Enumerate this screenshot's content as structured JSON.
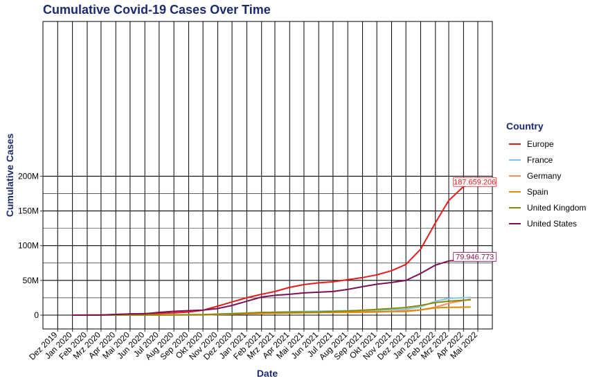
{
  "chart_data": {
    "type": "line",
    "title": "Cumulative Covid-19 Cases Over Time",
    "xlabel": "Date",
    "ylabel": "Cumulative Cases",
    "ylim": [
      0,
      210000000
    ],
    "yticks": [
      0,
      50000000,
      100000000,
      150000000,
      200000000
    ],
    "ytick_labels": [
      "0",
      "50M",
      "100M",
      "150M",
      "200M"
    ],
    "xlim": [
      "2019-11-20",
      "2022-05-20"
    ],
    "xtick_labels": [
      "Dez 2019",
      "Jan 2020",
      "Feb 2020",
      "Mrz 2020",
      "Apr 2020",
      "Mai 2020",
      "Jun 2020",
      "Jul 2020",
      "Aug 2020",
      "Sep 2020",
      "Okt 2020",
      "Nov 2020",
      "Dez 2020",
      "Jan 2021",
      "Feb 2021",
      "Mrz 2021",
      "Apr 2021",
      "Mai 2021",
      "Jun 2021",
      "Jul 2021",
      "Aug 2021",
      "Sep 2021",
      "Okt 2021",
      "Nov 2021",
      "Dez 2021",
      "Jan 2022",
      "Feb 2022",
      "Mrz 2022",
      "Apr 2022",
      "Mai 2022"
    ],
    "grid": true,
    "legend": {
      "title": "Country",
      "placement": "right"
    },
    "series": [
      {
        "name": "Europe",
        "color": "#e41a1c",
        "x": [
          "2020-01-01",
          "2020-03-01",
          "2020-04-01",
          "2020-05-01",
          "2020-06-01",
          "2020-07-01",
          "2020-08-01",
          "2020-09-01",
          "2020-10-01",
          "2020-11-01",
          "2020-12-01",
          "2021-01-01",
          "2021-02-01",
          "2021-03-01",
          "2021-04-01",
          "2021-05-01",
          "2021-06-01",
          "2021-07-01",
          "2021-08-01",
          "2021-09-01",
          "2021-10-01",
          "2021-11-01",
          "2021-12-01",
          "2022-01-01",
          "2022-02-01",
          "2022-03-01",
          "2022-04-01",
          "2022-04-16"
        ],
        "y": [
          0,
          200000,
          1000000,
          1800000,
          2200000,
          2600000,
          3200000,
          4500000,
          7000000,
          13000000,
          19000000,
          25000000,
          30000000,
          34000000,
          40000000,
          44000000,
          46500000,
          48000000,
          51000000,
          54000000,
          58000000,
          64000000,
          73000000,
          95000000,
          133000000,
          165000000,
          185000000,
          187659206
        ],
        "end_label": "187.659.206"
      },
      {
        "name": "France",
        "color": "#7ec8e3",
        "x": [
          "2020-01-01",
          "2020-04-01",
          "2020-07-01",
          "2020-10-01",
          "2020-12-01",
          "2021-02-01",
          "2021-04-01",
          "2021-06-01",
          "2021-08-01",
          "2021-10-01",
          "2021-12-01",
          "2022-01-01",
          "2022-02-01",
          "2022-03-01",
          "2022-04-16"
        ],
        "y": [
          0,
          150000,
          200000,
          700000,
          2500000,
          3500000,
          5000000,
          5800000,
          6500000,
          7000000,
          8500000,
          12000000,
          20000000,
          24000000,
          25500000
        ]
      },
      {
        "name": "Germany",
        "color": "#fc8d62",
        "x": [
          "2020-01-01",
          "2020-04-01",
          "2020-07-01",
          "2020-10-01",
          "2020-12-01",
          "2021-02-01",
          "2021-04-01",
          "2021-06-01",
          "2021-08-01",
          "2021-10-01",
          "2021-12-01",
          "2022-01-01",
          "2022-02-01",
          "2022-03-01",
          "2022-04-16"
        ],
        "y": [
          0,
          150000,
          200000,
          300000,
          1200000,
          2300000,
          3000000,
          3700000,
          3800000,
          4300000,
          6500000,
          7500000,
          11500000,
          17000000,
          23000000
        ]
      },
      {
        "name": "Spain",
        "color": "#d98c00",
        "x": [
          "2020-01-01",
          "2020-04-01",
          "2020-07-01",
          "2020-10-01",
          "2020-12-01",
          "2021-02-01",
          "2021-04-01",
          "2021-06-01",
          "2021-08-01",
          "2021-10-01",
          "2021-12-01",
          "2022-01-01",
          "2022-02-01",
          "2022-03-01",
          "2022-04-16"
        ],
        "y": [
          0,
          200000,
          250000,
          800000,
          1700000,
          2900000,
          3300000,
          3700000,
          4700000,
          5000000,
          5300000,
          7500000,
          10500000,
          11300000,
          11600000
        ]
      },
      {
        "name": "United Kingdom",
        "color": "#8a8a00",
        "x": [
          "2020-01-01",
          "2020-04-01",
          "2020-07-01",
          "2020-10-01",
          "2020-12-01",
          "2021-02-01",
          "2021-04-01",
          "2021-06-01",
          "2021-08-01",
          "2021-10-01",
          "2021-12-01",
          "2022-01-01",
          "2022-02-01",
          "2022-03-01",
          "2022-04-16"
        ],
        "y": [
          0,
          150000,
          300000,
          500000,
          2000000,
          4000000,
          4400000,
          4600000,
          6000000,
          8200000,
          11000000,
          14000000,
          18000000,
          20000000,
          22000000
        ]
      },
      {
        "name": "United States",
        "color": "#7b1152",
        "x": [
          "2020-01-01",
          "2020-03-01",
          "2020-04-01",
          "2020-05-01",
          "2020-06-01",
          "2020-07-01",
          "2020-08-01",
          "2020-09-01",
          "2020-10-01",
          "2020-11-01",
          "2020-12-01",
          "2021-01-01",
          "2021-02-01",
          "2021-03-01",
          "2021-04-01",
          "2021-05-01",
          "2021-06-01",
          "2021-07-01",
          "2021-08-01",
          "2021-09-01",
          "2021-10-01",
          "2021-11-01",
          "2021-12-01",
          "2022-01-01",
          "2022-02-01",
          "2022-03-01",
          "2022-04-16"
        ],
        "y": [
          0,
          100000,
          1000000,
          1800000,
          2000000,
          4000000,
          5500000,
          6500000,
          7200000,
          9500000,
          14000000,
          20000000,
          26000000,
          28500000,
          30000000,
          32000000,
          33000000,
          34000000,
          37000000,
          41000000,
          44500000,
          47000000,
          50000000,
          60000000,
          72000000,
          78000000,
          79946773
        ],
        "end_label": "79.946.773"
      }
    ]
  }
}
